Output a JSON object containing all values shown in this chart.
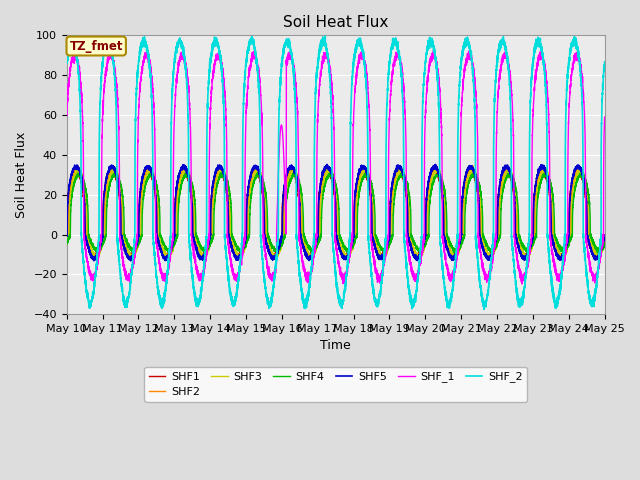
{
  "title": "Soil Heat Flux",
  "xlabel": "Time",
  "ylabel": "Soil Heat Flux",
  "ylim": [
    -40,
    100
  ],
  "n_days": 15,
  "n_points": 7200,
  "series": {
    "SHF1": {
      "color": "#cc0000",
      "lw": 1.0,
      "peak": 32,
      "trough": -11,
      "phase": 0.0,
      "sharpness": 3.0
    },
    "SHF2": {
      "color": "#ff8800",
      "lw": 1.0,
      "peak": 33,
      "trough": -11,
      "phase": 0.04,
      "sharpness": 3.0
    },
    "SHF3": {
      "color": "#cccc00",
      "lw": 1.0,
      "peak": 32,
      "trough": -11,
      "phase": 0.07,
      "sharpness": 3.0
    },
    "SHF4": {
      "color": "#00bb00",
      "lw": 1.0,
      "peak": 30,
      "trough": -8,
      "phase": 0.1,
      "sharpness": 3.0
    },
    "SHF5": {
      "color": "#0000cc",
      "lw": 1.2,
      "peak": 34,
      "trough": -12,
      "phase": 0.01,
      "sharpness": 3.0
    },
    "SHF_1": {
      "color": "#ff00ff",
      "lw": 1.0,
      "peak": 90,
      "trough": -22,
      "phase": -0.03,
      "sharpness": 4.0
    },
    "SHF_2": {
      "color": "#00dddd",
      "lw": 1.2,
      "peak": 97,
      "trough": -35,
      "phase": -0.1,
      "sharpness": 4.5
    }
  },
  "xtick_labels": [
    "May 10",
    "May 11",
    "May 12",
    "May 13",
    "May 14",
    "May 15",
    "May 16",
    "May 17",
    "May 18",
    "May 19",
    "May 20",
    "May 21",
    "May 22",
    "May 23",
    "May 24",
    "May 25"
  ],
  "legend_box_color": "#ffffcc",
  "legend_box_edge": "#aa8800",
  "legend_label_color": "#880000",
  "legend_label_text": "TZ_fmet",
  "bg_color": "#dddddd",
  "axes_bg": "#ebebeb",
  "grid_color": "#ffffff",
  "title_fontsize": 11,
  "label_fontsize": 9,
  "tick_fontsize": 8,
  "legend_ncol": 6
}
